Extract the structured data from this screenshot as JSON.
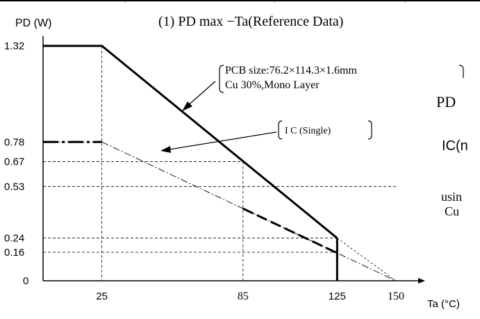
{
  "chart_data": {
    "type": "line",
    "title": "(1)  PD max  −Ta(Reference Data)",
    "ylabel": "PD (W)",
    "xlabel": "Ta (°C)",
    "x_ticks": [
      25,
      85,
      125,
      150
    ],
    "y_ticks": [
      0,
      0.16,
      0.24,
      0.53,
      0.67,
      0.78,
      1.32
    ],
    "xlim": [
      0,
      150
    ],
    "ylim": [
      0,
      1.32
    ],
    "series": [
      {
        "name": "PCB",
        "points": [
          [
            0,
            1.32
          ],
          [
            25,
            1.32
          ],
          [
            125,
            0.24
          ]
        ],
        "extension": [
          [
            125,
            0.24
          ],
          [
            150,
            0
          ]
        ],
        "drop": [
          [
            125,
            0.24
          ],
          [
            125,
            0
          ]
        ]
      },
      {
        "name": "I C (Single)",
        "points": [
          [
            0,
            0.78
          ],
          [
            25,
            0.78
          ],
          [
            150,
            0
          ]
        ]
      }
    ],
    "annotations": [
      {
        "name": "pcb-note",
        "lines": [
          "PCB size:76.2×114.3×1.6mm",
          "Cu 30%,Mono Layer"
        ]
      },
      {
        "name": "ic-note",
        "lines": [
          "I C (Single)"
        ]
      }
    ],
    "cut_text": [
      "PD",
      "IC(n",
      "usin",
      "Cu "
    ]
  }
}
